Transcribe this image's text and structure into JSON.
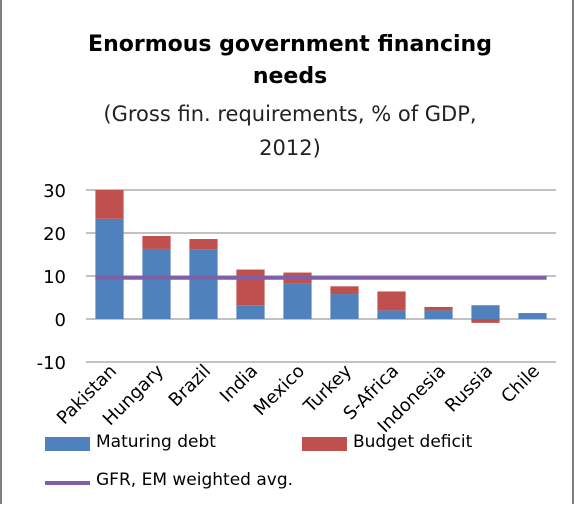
{
  "chart_data": {
    "type": "bar",
    "stacked": true,
    "title_line1": "Enormous government financing",
    "title_line2": "needs",
    "subtitle_line1": "(Gross fin. requirements, % of GDP,",
    "subtitle_line2": "2012)",
    "categories": [
      "Pakistan",
      "Hungary",
      "Brazil",
      "India",
      "Mexico",
      "Turkey",
      "S-Africa",
      "Indonesia",
      "Russia",
      "Chile"
    ],
    "series": [
      {
        "name": "Maturing debt",
        "color": "#4f81bd",
        "values": [
          23.3,
          16.3,
          16.2,
          3.2,
          8.2,
          5.8,
          2.0,
          2.0,
          3.2,
          1.2
        ]
      },
      {
        "name": "Budget deficit",
        "color": "#c0504d",
        "values": [
          6.7,
          3.0,
          2.4,
          8.3,
          2.6,
          1.8,
          4.4,
          0.8,
          -0.9,
          0.2
        ]
      }
    ],
    "line": {
      "name": "GFR, EM weighted avg.",
      "color": "#7f5fa8",
      "value": 9.6
    },
    "ylim": [
      -10,
      30
    ],
    "yticks": [
      -10,
      0,
      10,
      20,
      30
    ],
    "grid": true,
    "legend_position": "bottom"
  }
}
